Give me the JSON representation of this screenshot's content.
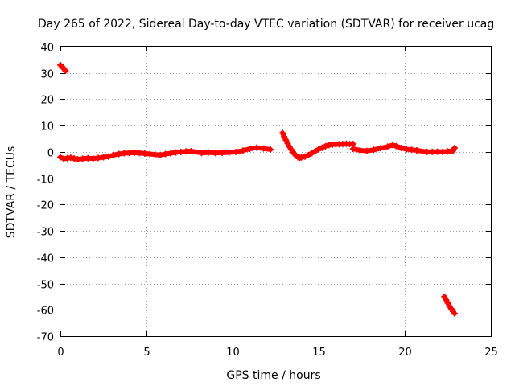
{
  "chart_data": {
    "type": "scatter",
    "title": "Day 265 of 2022, Sidereal Day-to-day VTEC variation (SDTVAR) for receiver ucag",
    "xlabel": "GPS time / hours",
    "ylabel": "SDTVAR / TECUs",
    "xlim": [
      0,
      25
    ],
    "ylim": [
      -70,
      40
    ],
    "x_ticks": [
      0,
      5,
      10,
      15,
      20,
      25
    ],
    "y_ticks": [
      -70,
      -60,
      -50,
      -40,
      -30,
      -20,
      -10,
      0,
      10,
      20,
      30,
      40
    ],
    "grid": true,
    "legend": "none",
    "series": [
      {
        "name": "SDTVAR",
        "color": "#ff0000",
        "marker": "plus",
        "points": [
          [
            0.0,
            33.0
          ],
          [
            0.1,
            32.4
          ],
          [
            0.2,
            31.6
          ],
          [
            0.3,
            30.8
          ],
          [
            0.0,
            -2.0
          ],
          [
            0.2,
            -2.6
          ],
          [
            0.4,
            -2.4
          ],
          [
            0.6,
            -2.2
          ],
          [
            0.8,
            -2.5
          ],
          [
            1.0,
            -2.8
          ],
          [
            1.3,
            -2.6
          ],
          [
            1.6,
            -2.4
          ],
          [
            1.9,
            -2.5
          ],
          [
            2.2,
            -2.3
          ],
          [
            2.5,
            -2.0
          ],
          [
            2.8,
            -1.8
          ],
          [
            3.1,
            -1.2
          ],
          [
            3.4,
            -0.8
          ],
          [
            3.7,
            -0.5
          ],
          [
            4.0,
            -0.4
          ],
          [
            4.3,
            -0.3
          ],
          [
            4.6,
            -0.4
          ],
          [
            4.9,
            -0.6
          ],
          [
            5.2,
            -0.8
          ],
          [
            5.5,
            -1.0
          ],
          [
            5.8,
            -1.2
          ],
          [
            6.1,
            -0.8
          ],
          [
            6.4,
            -0.5
          ],
          [
            6.7,
            -0.2
          ],
          [
            7.0,
            0.0
          ],
          [
            7.3,
            0.2
          ],
          [
            7.6,
            0.3
          ],
          [
            8.2,
            -0.4
          ],
          [
            8.6,
            -0.2
          ],
          [
            9.0,
            -0.4
          ],
          [
            9.4,
            -0.3
          ],
          [
            9.8,
            -0.2
          ],
          [
            10.2,
            0.0
          ],
          [
            10.6,
            0.5
          ],
          [
            11.0,
            1.2
          ],
          [
            11.4,
            1.6
          ],
          [
            11.8,
            1.3
          ],
          [
            12.2,
            0.9
          ],
          [
            12.9,
            7.2
          ],
          [
            13.0,
            5.8
          ],
          [
            13.1,
            4.5
          ],
          [
            13.2,
            3.2
          ],
          [
            13.3,
            2.0
          ],
          [
            13.4,
            1.0
          ],
          [
            13.5,
            0.0
          ],
          [
            13.6,
            -0.8
          ],
          [
            13.7,
            -1.5
          ],
          [
            13.8,
            -2.0
          ],
          [
            13.9,
            -2.2
          ],
          [
            14.0,
            -2.1
          ],
          [
            14.2,
            -1.8
          ],
          [
            14.4,
            -1.2
          ],
          [
            14.6,
            -0.5
          ],
          [
            14.8,
            0.3
          ],
          [
            15.0,
            1.0
          ],
          [
            15.2,
            1.6
          ],
          [
            15.4,
            2.2
          ],
          [
            15.6,
            2.6
          ],
          [
            15.8,
            2.8
          ],
          [
            16.0,
            2.9
          ],
          [
            16.2,
            2.9
          ],
          [
            16.4,
            3.0
          ],
          [
            16.6,
            3.1
          ],
          [
            16.8,
            3.0
          ],
          [
            17.0,
            3.0
          ],
          [
            17.0,
            1.2
          ],
          [
            17.4,
            0.6
          ],
          [
            17.8,
            0.4
          ],
          [
            18.2,
            0.8
          ],
          [
            18.6,
            1.4
          ],
          [
            19.0,
            2.0
          ],
          [
            19.3,
            2.6
          ],
          [
            19.5,
            2.2
          ],
          [
            19.8,
            1.5
          ],
          [
            20.1,
            1.0
          ],
          [
            20.4,
            0.8
          ],
          [
            20.7,
            0.6
          ],
          [
            21.3,
            0.0
          ],
          [
            21.6,
            0.0
          ],
          [
            21.9,
            0.1
          ],
          [
            22.2,
            0.0
          ],
          [
            22.5,
            0.2
          ],
          [
            22.8,
            0.4
          ],
          [
            22.9,
            1.5
          ],
          [
            22.3,
            -55.0
          ],
          [
            22.4,
            -56.2
          ],
          [
            22.5,
            -57.4
          ],
          [
            22.6,
            -58.6
          ],
          [
            22.7,
            -59.6
          ],
          [
            22.8,
            -60.6
          ],
          [
            22.9,
            -61.4
          ]
        ]
      }
    ]
  }
}
